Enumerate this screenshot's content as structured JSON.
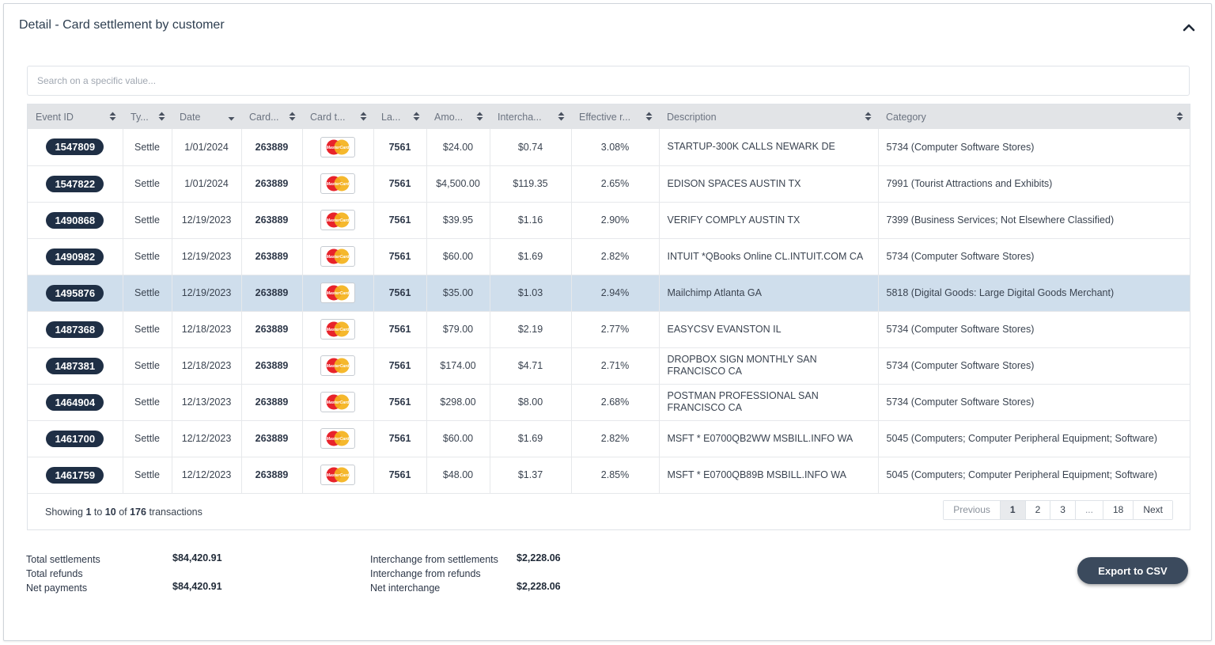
{
  "panel": {
    "title": "Detail - Card settlement by customer"
  },
  "search": {
    "placeholder": "Search on a specific value..."
  },
  "columns": [
    "Event ID",
    "Ty...",
    "Date",
    "Card...",
    "Card t...",
    "La...",
    "Amo...",
    "Intercha...",
    "Effective r...",
    "Description",
    "Category"
  ],
  "rows": [
    {
      "event_id": "1547809",
      "type": "Settle",
      "date": "1/01/2024",
      "card": "263889",
      "card_type": "MasterCard",
      "last": "7561",
      "amount": "$24.00",
      "interchange": "$0.74",
      "rate": "3.08%",
      "description": "STARTUP-300K CALLS NEWARK DE",
      "category": "5734 (Computer Software Stores)",
      "selected": false
    },
    {
      "event_id": "1547822",
      "type": "Settle",
      "date": "1/01/2024",
      "card": "263889",
      "card_type": "MasterCard",
      "last": "7561",
      "amount": "$4,500.00",
      "interchange": "$119.35",
      "rate": "2.65%",
      "description": "EDISON SPACES AUSTIN TX",
      "category": "7991 (Tourist Attractions and Exhibits)",
      "selected": false
    },
    {
      "event_id": "1490868",
      "type": "Settle",
      "date": "12/19/2023",
      "card": "263889",
      "card_type": "MasterCard",
      "last": "7561",
      "amount": "$39.95",
      "interchange": "$1.16",
      "rate": "2.90%",
      "description": "VERIFY COMPLY AUSTIN TX",
      "category": "7399 (Business Services; Not Elsewhere Classified)",
      "selected": false
    },
    {
      "event_id": "1490982",
      "type": "Settle",
      "date": "12/19/2023",
      "card": "263889",
      "card_type": "MasterCard",
      "last": "7561",
      "amount": "$60.00",
      "interchange": "$1.69",
      "rate": "2.82%",
      "description": "INTUIT *QBooks Online CL.INTUIT.COM CA",
      "category": "5734 (Computer Software Stores)",
      "selected": false
    },
    {
      "event_id": "1495876",
      "type": "Settle",
      "date": "12/19/2023",
      "card": "263889",
      "card_type": "MasterCard",
      "last": "7561",
      "amount": "$35.00",
      "interchange": "$1.03",
      "rate": "2.94%",
      "description": "Mailchimp Atlanta GA",
      "category": "5818 (Digital Goods: Large Digital Goods Merchant)",
      "selected": true
    },
    {
      "event_id": "1487368",
      "type": "Settle",
      "date": "12/18/2023",
      "card": "263889",
      "card_type": "MasterCard",
      "last": "7561",
      "amount": "$79.00",
      "interchange": "$2.19",
      "rate": "2.77%",
      "description": "EASYCSV EVANSTON IL",
      "category": "5734 (Computer Software Stores)",
      "selected": false
    },
    {
      "event_id": "1487381",
      "type": "Settle",
      "date": "12/18/2023",
      "card": "263889",
      "card_type": "MasterCard",
      "last": "7561",
      "amount": "$174.00",
      "interchange": "$4.71",
      "rate": "2.71%",
      "description": "DROPBOX SIGN MONTHLY SAN FRANCISCO CA",
      "category": "5734 (Computer Software Stores)",
      "selected": false
    },
    {
      "event_id": "1464904",
      "type": "Settle",
      "date": "12/13/2023",
      "card": "263889",
      "card_type": "MasterCard",
      "last": "7561",
      "amount": "$298.00",
      "interchange": "$8.00",
      "rate": "2.68%",
      "description": "POSTMAN PROFESSIONAL SAN FRANCISCO CA",
      "category": "5734 (Computer Software Stores)",
      "selected": false
    },
    {
      "event_id": "1461700",
      "type": "Settle",
      "date": "12/12/2023",
      "card": "263889",
      "card_type": "MasterCard",
      "last": "7561",
      "amount": "$60.00",
      "interchange": "$1.69",
      "rate": "2.82%",
      "description": "MSFT * E0700QB2WW MSBILL.INFO WA",
      "category": "5045 (Computers; Computer Peripheral Equipment; Software)",
      "selected": false
    },
    {
      "event_id": "1461759",
      "type": "Settle",
      "date": "12/12/2023",
      "card": "263889",
      "card_type": "MasterCard",
      "last": "7561",
      "amount": "$48.00",
      "interchange": "$1.37",
      "rate": "2.85%",
      "description": "MSFT * E0700QB89B MSBILL.INFO WA",
      "category": "5045 (Computers; Computer Peripheral Equipment; Software)",
      "selected": false
    }
  ],
  "info": {
    "showing": "Showing",
    "from": "1",
    "to_word": "to",
    "to": "10",
    "of_word": "of",
    "total": "176",
    "suffix": "transactions"
  },
  "pagination": {
    "previous": "Previous",
    "pages": [
      "1",
      "2",
      "3",
      "...",
      "18"
    ],
    "active": "1",
    "next": "Next"
  },
  "totals": {
    "settlements_label": "Total settlements",
    "settlements_value": "$84,420.91",
    "refunds_label": "Total refunds",
    "refunds_value": "",
    "net_payments_label": "Net payments",
    "net_payments_value": "$84,420.91",
    "ic_settlements_label": "Interchange from settlements",
    "ic_settlements_value": "$2,228.06",
    "ic_refunds_label": "Interchange from refunds",
    "ic_refunds_value": "",
    "net_ic_label": "Net interchange",
    "net_ic_value": "$2,228.06"
  },
  "export_label": "Export to CSV",
  "colors": {
    "pill": "#1f2f45",
    "selected_row": "#cfdeec",
    "header_bg": "#e2e4e7",
    "export_bg": "#3b4a5d"
  },
  "icons": {
    "collapse": "chevron-up-icon",
    "sort": "sort-icon",
    "card": "mastercard-icon"
  }
}
